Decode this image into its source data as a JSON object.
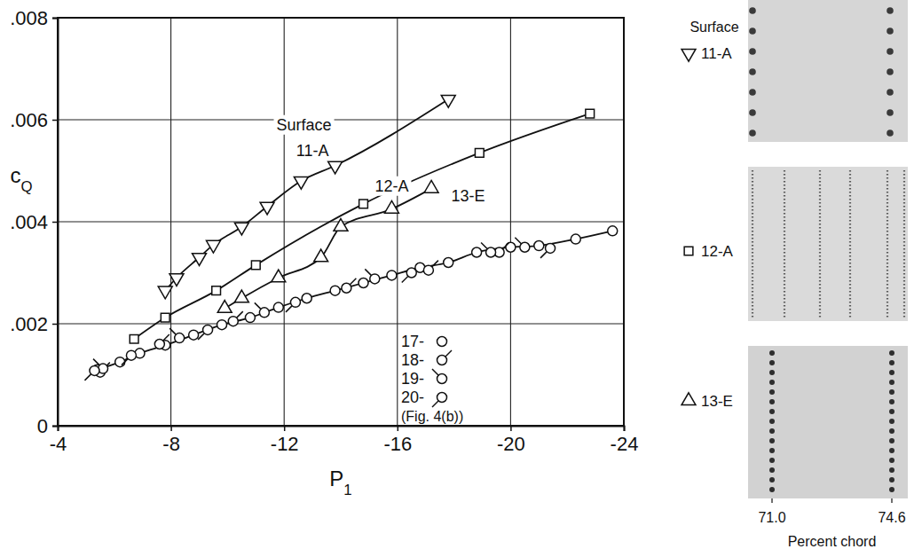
{
  "chart_data": {
    "type": "line",
    "x_label": "P1",
    "y_label": "cQ",
    "xlim": [
      -4,
      -24
    ],
    "ylim": [
      0,
      0.008
    ],
    "xticks": [
      -4,
      -8,
      -12,
      -16,
      -20,
      -24
    ],
    "yticks": [
      0,
      {
        "value": 0.002,
        "label": ".002"
      },
      {
        "value": 0.004,
        "label": ".004"
      },
      {
        "value": 0.006,
        "label": ".006"
      },
      {
        "value": 0.008,
        "label": ".008"
      }
    ],
    "grid": true,
    "legend": "lower right",
    "legend_note": "(Fig. 4(b))",
    "series": [
      {
        "name": "11-A",
        "marker": "triangle-down",
        "line_style": "solid",
        "x": [
          -7.8,
          -8.2,
          -9.0,
          -9.5,
          -10.5,
          -11.4,
          -12.6,
          -13.8,
          -17.8
        ],
        "values": [
          0.00265,
          0.0029,
          0.0033,
          0.00355,
          0.0039,
          0.0043,
          0.0048,
          0.0051,
          0.0064
        ]
      },
      {
        "name": "12-A",
        "marker": "square",
        "line_style": "solid",
        "x": [
          -6.7,
          -7.8,
          -9.6,
          -11.0,
          -14.8,
          -18.9,
          -22.8
        ],
        "values": [
          0.0017,
          0.00212,
          0.00265,
          0.00315,
          0.00435,
          0.00535,
          0.00612
        ]
      },
      {
        "name": "13-E",
        "marker": "triangle-up",
        "line_style": "solid",
        "x": [
          -9.9,
          -10.5,
          -11.8,
          -13.3,
          -14.0,
          -15.8,
          -17.2
        ],
        "values": [
          0.0023,
          0.0025,
          0.0029,
          0.0033,
          0.0039,
          0.00425,
          0.00465
        ]
      },
      {
        "name": "17-",
        "marker": "circle",
        "line_style": "solid",
        "x": [
          -5.4,
          -6.2,
          -6.9,
          -7.8,
          -8.8,
          -9.8,
          -10.8,
          -11.8,
          -12.8,
          -13.8,
          -14.8,
          -15.8,
          -16.8,
          -17.8,
          -18.8,
          -20.0,
          -21.0,
          -22.3,
          -23.6
        ],
        "values": [
          0.0011,
          0.00125,
          0.00142,
          0.00158,
          0.00178,
          0.00198,
          0.00212,
          0.00232,
          0.0025,
          0.00265,
          0.0028,
          0.00295,
          0.0031,
          0.0032,
          0.0034,
          0.0035,
          0.00353,
          0.00366,
          0.00382
        ]
      },
      {
        "name": "18-",
        "type": "scatter",
        "marker": "circle-flag-ne",
        "x": [
          -5.5,
          -7.6,
          -10.2,
          -14.2,
          -17.1,
          -19.6
        ],
        "values": [
          0.00105,
          0.0016,
          0.00205,
          0.0027,
          0.00305,
          0.0034
        ]
      },
      {
        "name": "19-",
        "type": "scatter",
        "marker": "circle-flag-nw",
        "x": [
          -5.6,
          -8.3,
          -11.3,
          -15.2,
          -19.3,
          -20.5
        ],
        "values": [
          0.00112,
          0.00172,
          0.00222,
          0.00288,
          0.0034,
          0.0035
        ]
      },
      {
        "name": "20-",
        "type": "scatter",
        "marker": "circle-flag-sw",
        "x": [
          -5.3,
          -6.6,
          -9.3,
          -12.4,
          -16.5,
          -21.4
        ],
        "values": [
          0.00108,
          0.00138,
          0.00188,
          0.00242,
          0.003,
          0.00348
        ]
      }
    ],
    "annotations": [
      {
        "text": "Surface",
        "x": -12.7,
        "y": 0.0059
      },
      {
        "text": "11-A",
        "x": -13.0,
        "y": 0.0054
      },
      {
        "text": "12-A",
        "x": -15.8,
        "y": 0.0047
      },
      {
        "text": "13-E",
        "x": -18.5,
        "y": 0.0045
      }
    ]
  },
  "photo_panel": {
    "title": "Surface",
    "rows": [
      {
        "label": "11-A",
        "marker": "triangle-down"
      },
      {
        "label": "12-A",
        "marker": "square"
      },
      {
        "label": "13-E",
        "marker": "triangle-up"
      }
    ],
    "xticks": [
      {
        "value": 71.0,
        "label": "71.0"
      },
      {
        "value": 74.6,
        "label": "74.6"
      }
    ],
    "x_label": "Percent chord"
  }
}
